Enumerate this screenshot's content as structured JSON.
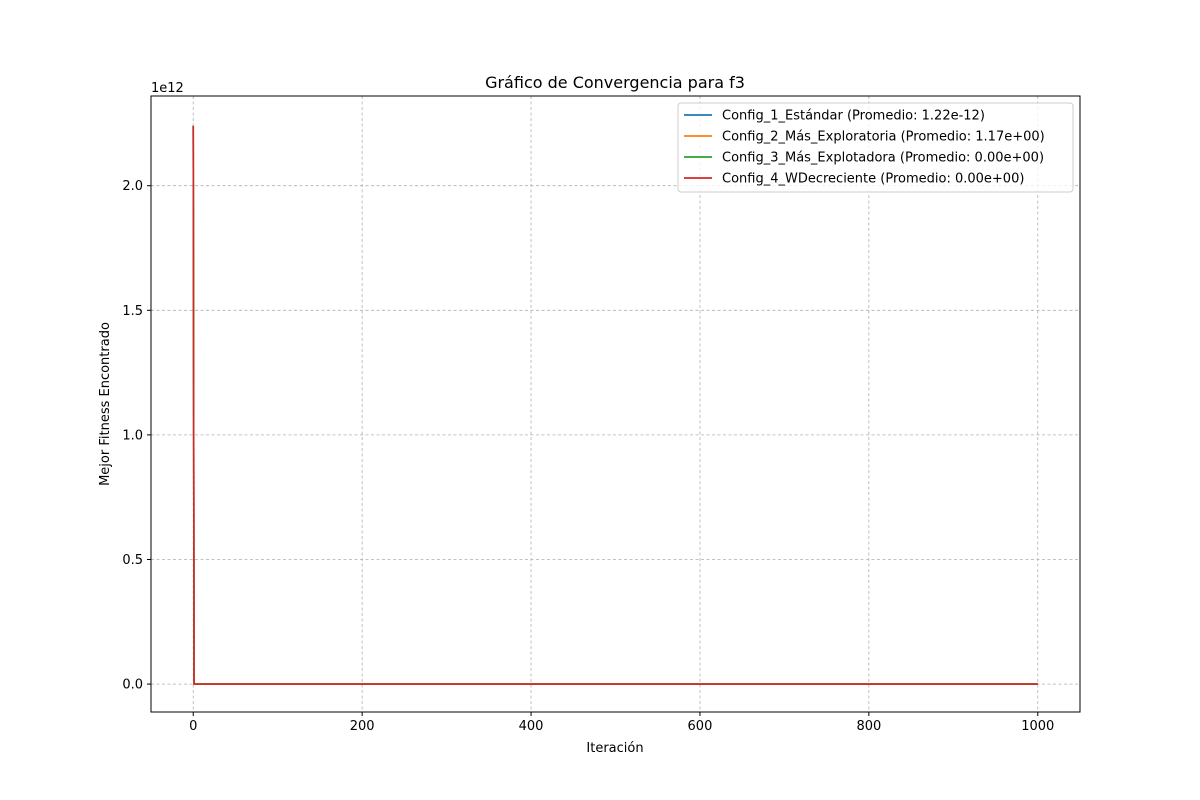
{
  "chart_data": {
    "type": "line",
    "title": "Gráfico de Convergencia para f3",
    "xlabel": "Iteración",
    "ylabel": "Mejor Fitness Encontrado",
    "y_offset_label": "1e12",
    "xlim": [
      -50,
      1050
    ],
    "ylim": [
      -0.112,
      2.36
    ],
    "xticks": [
      0,
      200,
      400,
      600,
      800,
      1000
    ],
    "xtick_labels": [
      "0",
      "200",
      "400",
      "600",
      "800",
      "1000"
    ],
    "yticks": [
      0.0,
      0.5,
      1.0,
      1.5,
      2.0
    ],
    "ytick_labels": [
      "0.0",
      "0.5",
      "1.0",
      "1.5",
      "2.0"
    ],
    "grid": true,
    "legend_position": "top-right",
    "series": [
      {
        "name": "Config_1_Estándar (Promedio: 1.22e-12)",
        "color": "#1f77b4",
        "x": [
          0,
          1,
          1000
        ],
        "y": [
          2.24,
          0.0,
          0.0
        ]
      },
      {
        "name": "Config_2_Más_Exploratoria (Promedio: 1.17e+00)",
        "color": "#ff7f0e",
        "x": [
          0,
          1,
          1000
        ],
        "y": [
          2.24,
          0.0,
          0.0
        ]
      },
      {
        "name": "Config_3_Más_Explotadora (Promedio: 0.00e+00)",
        "color": "#2ca02c",
        "x": [
          0,
          1,
          1000
        ],
        "y": [
          2.24,
          0.0,
          0.0
        ]
      },
      {
        "name": "Config_4_WDecreciente (Promedio: 0.00e+00)",
        "color": "#d62728",
        "x": [
          0,
          1,
          1000
        ],
        "y": [
          2.24,
          0.0,
          0.0
        ]
      }
    ]
  }
}
